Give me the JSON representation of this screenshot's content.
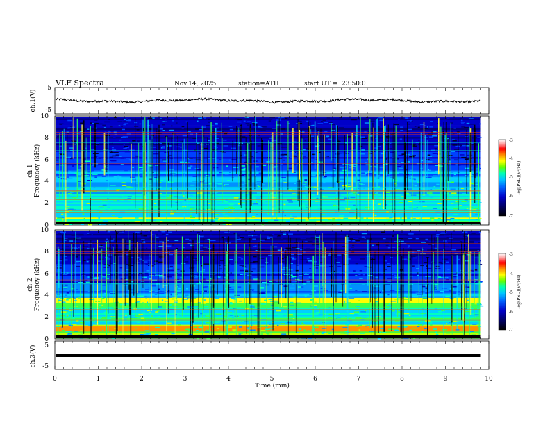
{
  "header": {
    "title": "VLF Spectra",
    "date": "Nov.14, 2025",
    "station": "station=ATH",
    "start": "start UT =",
    "start_time": "23:50:0"
  },
  "colors": {
    "waveform": "#000000",
    "colormap": [
      "#ffffff",
      "#000050",
      "#0000c8",
      "#0064ff",
      "#00c8ff",
      "#00ffb4",
      "#64ff00",
      "#ffff00",
      "#ff8c00",
      "#ff0000",
      "#960000"
    ]
  },
  "chart_data": [
    {
      "type": "line",
      "name": "ch1-waveform",
      "ylabel": "ch.1(V)",
      "ylim": [
        -5,
        5
      ],
      "yticks": [
        "5",
        "-5"
      ],
      "description_level": "noisy waveform near zero",
      "x_range_min": [
        0,
        9.8
      ]
    },
    {
      "type": "heatmap",
      "name": "ch1-spectrogram",
      "ylabel_top": "ch.1",
      "ylabel": "Frequency (kHz)",
      "ylim": [
        0,
        10
      ],
      "yticks": [
        "0",
        "2",
        "4",
        "6",
        "8",
        "10"
      ],
      "x_range_min": [
        0,
        9.8
      ],
      "colorbar": {
        "label": "log(PSD)(V²/Hz)",
        "range": [
          -7,
          -3
        ],
        "ticks": [
          "-3",
          "-4",
          "-5",
          "-6",
          "-7"
        ]
      }
    },
    {
      "type": "heatmap",
      "name": "ch2-spectrogram",
      "ylabel_top": "ch.2",
      "ylabel": "Frequency (kHz)",
      "ylim": [
        0,
        10
      ],
      "yticks": [
        "0",
        "2",
        "4",
        "6",
        "8",
        "10"
      ],
      "x_range_min": [
        0,
        9.8
      ],
      "colorbar": {
        "label": "log(PSD)(V²/Hz)",
        "range": [
          -7,
          -3
        ],
        "ticks": [
          "-3",
          "-4",
          "-5",
          "-6",
          "-7"
        ]
      }
    },
    {
      "type": "line",
      "name": "ch3-waveform",
      "ylabel": "ch.3(V)",
      "ylim": [
        -5,
        5
      ],
      "yticks": [
        "5",
        "-5"
      ],
      "x_range_min": [
        0,
        9.8
      ]
    }
  ],
  "xaxis": {
    "label": "Time (min)",
    "ticks": [
      "0",
      "1",
      "2",
      "3",
      "4",
      "5",
      "6",
      "7",
      "8",
      "9",
      "10"
    ]
  }
}
